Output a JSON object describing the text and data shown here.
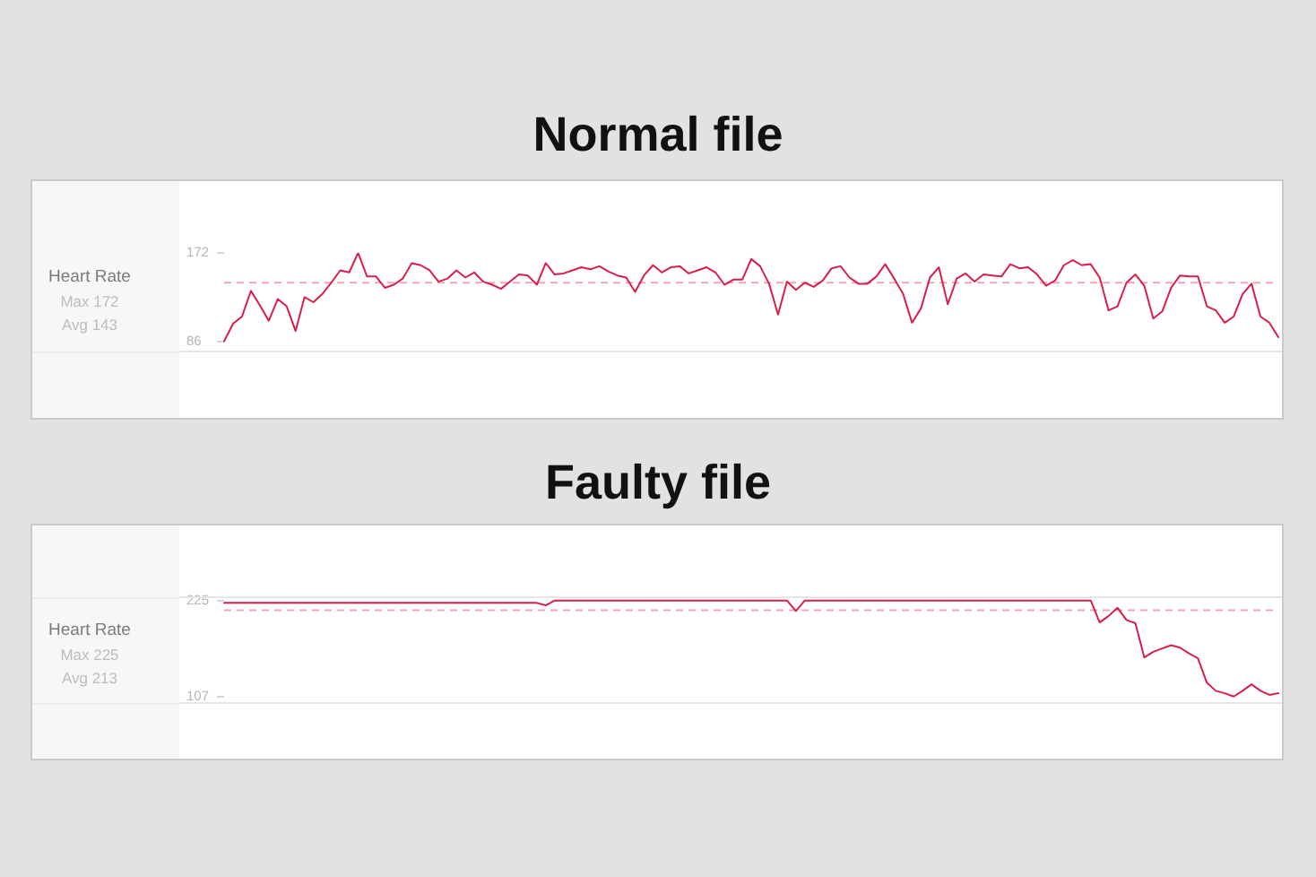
{
  "chart_data": [
    {
      "type": "line",
      "title": "Normal file",
      "ylabel": "Heart Rate",
      "annotations": [
        "Max 172",
        "Avg 143"
      ],
      "categories": [
        null,
        null,
        null,
        null,
        null,
        null,
        null,
        null,
        null,
        null,
        null,
        null,
        null,
        null,
        null,
        null,
        null,
        null,
        null,
        null,
        null,
        null,
        null,
        null,
        null,
        null,
        null,
        null,
        null,
        null,
        null,
        null,
        null,
        null,
        null,
        null,
        null,
        null,
        null,
        null,
        null,
        null,
        null,
        null,
        null,
        null,
        null,
        null,
        null,
        null,
        null,
        null,
        null,
        null,
        null,
        null,
        null,
        null,
        null,
        null,
        null,
        null,
        null,
        null,
        null,
        null,
        null,
        null,
        null,
        null,
        null,
        null,
        null,
        null,
        null,
        null,
        null,
        null,
        null,
        null,
        null,
        null,
        null,
        null,
        null,
        null,
        null,
        null,
        null,
        null,
        null,
        null,
        null,
        null,
        null,
        null,
        null,
        null,
        null,
        null,
        null,
        null,
        null,
        null,
        null,
        null,
        null,
        null,
        null,
        null,
        null,
        null,
        null,
        null,
        null,
        null,
        null,
        null,
        null
      ],
      "series": [
        {
          "color": "#d81f4b",
          "values": [
            86,
            103,
            110,
            135,
            121,
            106,
            127,
            120,
            96,
            129,
            124,
            132,
            143,
            155,
            153,
            172,
            149,
            149,
            138,
            141,
            147,
            162,
            160,
            155,
            144,
            147,
            155,
            148,
            153,
            144,
            141,
            137,
            144,
            151,
            150,
            141,
            162,
            151,
            152,
            155,
            158,
            156,
            159,
            154,
            150,
            148,
            134,
            150,
            160,
            153,
            158,
            159,
            152,
            155,
            158,
            153,
            141,
            146,
            146,
            166,
            159,
            142,
            112,
            144,
            136,
            143,
            139,
            145,
            157,
            159,
            148,
            142,
            142,
            149,
            161,
            147,
            132,
            104,
            118,
            148,
            158,
            122,
            147,
            152,
            144,
            151,
            150,
            149,
            161,
            157,
            158,
            151,
            140,
            145,
            160,
            165,
            160,
            161,
            148,
            116,
            120,
            143,
            151,
            140,
            108,
            115,
            138,
            150,
            149,
            149,
            120,
            116,
            104,
            110,
            132,
            142,
            110,
            104,
            90
          ]
        }
      ],
      "ylim": [
        76,
        172
      ],
      "yticks": [
        86,
        172
      ],
      "tick_labels": "y",
      "marker": "none",
      "ref_lines": [
        {
          "axis": "y",
          "value": 143,
          "color": "#f3a5b9",
          "line_style": "dashed"
        }
      ]
    },
    {
      "type": "line",
      "title": "Faulty file",
      "ylabel": "Heart Rate",
      "annotations": [
        "Max 225",
        "Avg 213"
      ],
      "categories": [
        null,
        null,
        null,
        null,
        null,
        null,
        null,
        null,
        null,
        null,
        null,
        null,
        null,
        null,
        null,
        null,
        null,
        null,
        null,
        null,
        null,
        null,
        null,
        null,
        null,
        null,
        null,
        null,
        null,
        null,
        null,
        null,
        null,
        null,
        null,
        null,
        null,
        null,
        null,
        null,
        null,
        null,
        null,
        null,
        null,
        null,
        null,
        null,
        null,
        null,
        null,
        null,
        null,
        null,
        null,
        null,
        null,
        null,
        null,
        null,
        null,
        null,
        null,
        null,
        null,
        null,
        null,
        null,
        null,
        null,
        null,
        null,
        null,
        null,
        null,
        null,
        null,
        null,
        null,
        null,
        null,
        null,
        null,
        null,
        null,
        null,
        null,
        null,
        null,
        null,
        null,
        null,
        null,
        null,
        null,
        null,
        null,
        null,
        null,
        null,
        null,
        null,
        null,
        null,
        null,
        null,
        null,
        null,
        null,
        null,
        null,
        null,
        null,
        null,
        null,
        null,
        null,
        null,
        null
      ],
      "series": [
        {
          "color": "#d81f4b",
          "values": [
            222,
            222,
            222,
            222,
            222,
            222,
            222,
            222,
            222,
            222,
            222,
            222,
            222,
            222,
            222,
            222,
            222,
            222,
            222,
            222,
            222,
            222,
            222,
            222,
            222,
            222,
            222,
            222,
            222,
            222,
            222,
            222,
            222,
            222,
            222,
            222,
            219,
            225,
            225,
            225,
            225,
            225,
            225,
            225,
            225,
            225,
            225,
            225,
            225,
            225,
            225,
            225,
            225,
            225,
            225,
            225,
            225,
            225,
            225,
            225,
            225,
            225,
            225,
            225,
            212,
            225,
            225,
            225,
            225,
            225,
            225,
            225,
            225,
            225,
            225,
            225,
            225,
            225,
            225,
            225,
            225,
            225,
            225,
            225,
            225,
            225,
            225,
            225,
            225,
            225,
            225,
            225,
            225,
            225,
            225,
            225,
            225,
            225,
            198,
            206,
            216,
            201,
            197,
            155,
            162,
            166,
            170,
            167,
            160,
            154,
            124,
            114,
            111,
            107,
            114,
            122,
            114,
            109,
            111
          ]
        }
      ],
      "ylim": [
        99,
        229
      ],
      "yticks": [
        107,
        225
      ],
      "tick_labels": "y",
      "marker": "none",
      "ref_lines": [
        {
          "axis": "y",
          "value": 213,
          "color": "#f3a5b9",
          "line_style": "dashed"
        }
      ]
    }
  ]
}
